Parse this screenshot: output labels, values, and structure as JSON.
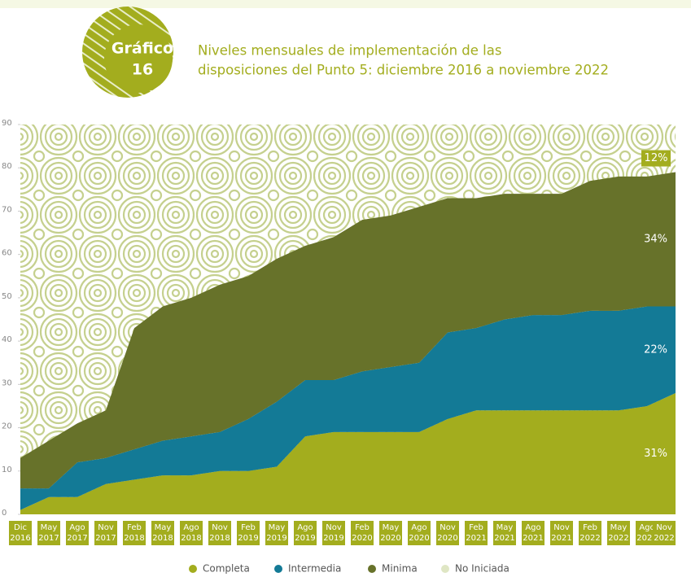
{
  "header": {
    "badge_label": "Gráfico",
    "badge_number": "16",
    "title_lines": [
      "Niveles mensuales de implementación de las",
      "disposiciones del Punto 5: diciembre 2016 a noviembre 2022"
    ]
  },
  "chart_data": {
    "type": "stacked-area",
    "categories": [
      "Dic 2016",
      "May 2017",
      "Ago 2017",
      "Nov 2017",
      "Feb 2018",
      "May 2018",
      "Ago 2018",
      "Nov 2018",
      "Feb 2019",
      "May 2019",
      "Ago 2019",
      "Nov 2019",
      "Feb 2020",
      "May 2020",
      "Ago 2020",
      "Nov 2020",
      "Feb 2021",
      "May 2021",
      "Ago 2021",
      "Nov 2021",
      "Feb 2022",
      "May 2022",
      "Ago 2022",
      "Nov 2022"
    ],
    "series": [
      {
        "name": "Completa",
        "color": "#a3ad1e",
        "values": [
          1,
          4,
          4,
          7,
          8,
          9,
          9,
          10,
          10,
          11,
          18,
          19,
          19,
          19,
          19,
          22,
          24,
          24,
          24,
          24,
          24,
          24,
          25,
          28
        ]
      },
      {
        "name": "Intermedia",
        "color": "#137a96",
        "values": [
          5,
          2,
          8,
          6,
          7,
          8,
          9,
          9,
          12,
          15,
          13,
          12,
          14,
          15,
          16,
          20,
          19,
          21,
          22,
          22,
          23,
          23,
          23,
          20
        ]
      },
      {
        "name": "Minima",
        "color": "#67722a",
        "values": [
          7,
          11,
          9,
          11,
          28,
          31,
          32,
          34,
          33,
          33,
          31,
          33,
          35,
          35,
          36,
          31,
          30,
          29,
          28,
          28,
          30,
          31,
          30,
          31
        ]
      },
      {
        "name": "No Iniciada",
        "color": "#dfe6c4"
      }
    ],
    "end_labels": [
      "31%",
      "22%",
      "34%",
      "12%"
    ],
    "ylim": [
      0,
      90
    ],
    "yticks": [
      0,
      10,
      20,
      30,
      40,
      50,
      60,
      70,
      80,
      90
    ],
    "grid": false
  }
}
